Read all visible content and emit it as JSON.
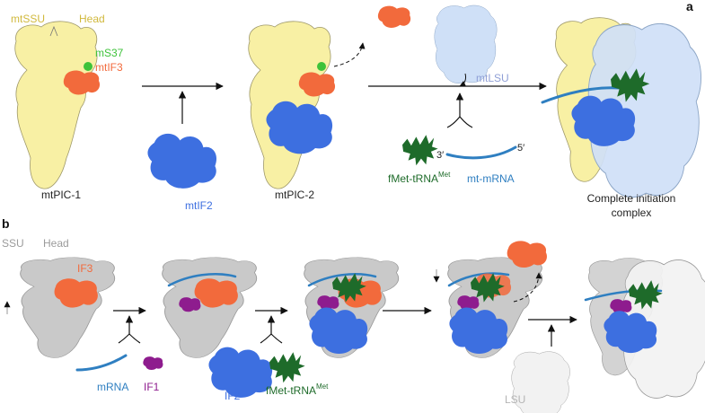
{
  "panel_a": {
    "letter": "a",
    "labels": {
      "mtssu": "mtSSU",
      "head": "Head",
      "ms37": "mS37",
      "mtif3": "mtIF3",
      "mtif2": "mtIF2",
      "mtpic1": "mtPIC-1",
      "mtpic2": "mtPIC-2",
      "mtlsu": "mtLSU",
      "fmet_trna": "fMet-tRNA",
      "fmet_sup": "Met",
      "mt_mrna": "mt-mRNA",
      "three_prime": "3′",
      "five_prime": "5′",
      "complete_line1": "Complete initiation",
      "complete_line2": "complex"
    }
  },
  "panel_b": {
    "letter": "b",
    "labels": {
      "ssu": "SSU",
      "head": "Head",
      "if3": "IF3",
      "mrna": "mRNA",
      "if1": "IF1",
      "if2": "IF2",
      "fmet_trna": "fMet-tRNA",
      "fmet_sup": "Met",
      "lsu": "LSU"
    }
  },
  "colors": {
    "ssu_yellow": "#f8f0a4",
    "ssu_grey": "#c9c9c9",
    "lsu_blue": "#cfe0f7",
    "lsu_white": "#f2f2f2",
    "if3_orange": "#f26a3c",
    "if2_blue": "#3d6fe0",
    "if1_purple": "#8e1c8e",
    "trna_green": "#1e6b2a",
    "mrna_blue": "#2f7fc1",
    "ms37_green": "#3ec23a",
    "label_yellow": "#d1b93d",
    "label_lsu": "#8f9fd6"
  }
}
